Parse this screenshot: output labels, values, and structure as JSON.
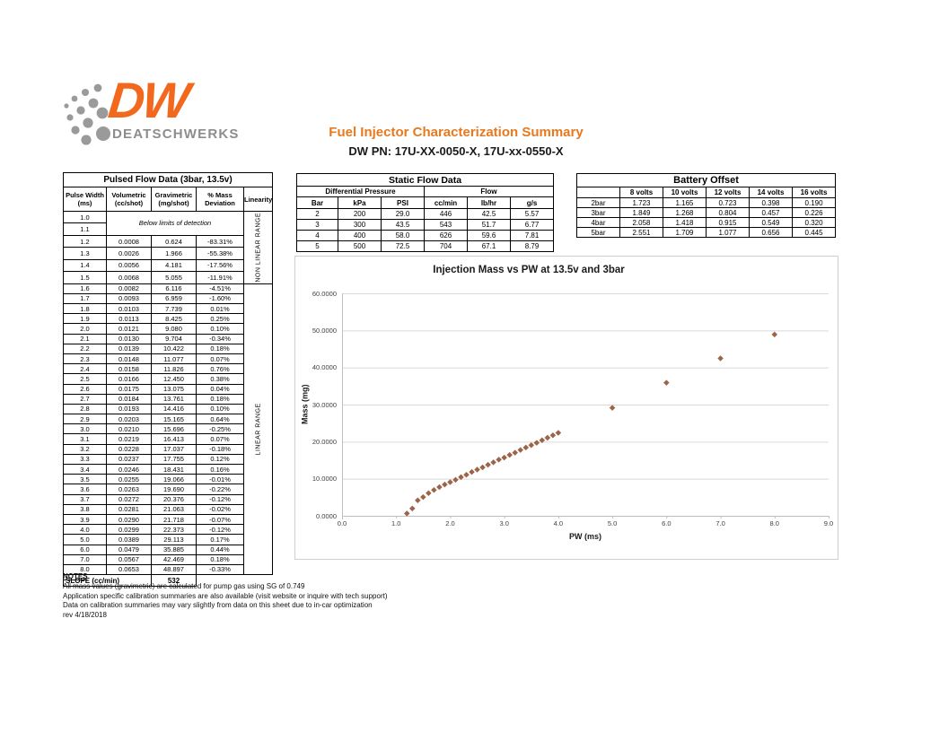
{
  "page": {
    "title": "Fuel Injector Characterization Summary",
    "subtitle": "DW PN: 17U-XX-0050-X, 17U-xx-0550-X"
  },
  "logo": {
    "mark": "DW",
    "name": "DEATSCHWERKS"
  },
  "colors": {
    "accent_orange": "#e8791d",
    "logo_orange": "#f2691e",
    "logo_gray": "#8d8d8d",
    "marker_brown": "#9c6449",
    "gridline_gray": "#d9d9d9",
    "axis_gray": "#bfbfbf"
  },
  "pulsed_table": {
    "title": "Pulsed Flow Data (3bar, 13.5v)",
    "columns": [
      [
        "Pulse Width",
        "(ms)"
      ],
      [
        "Volumetric",
        "(cc/shot)"
      ],
      [
        "Gravimetric",
        "(mg/shot)"
      ],
      [
        "% Mass",
        "Deviation"
      ],
      [
        "Linearity"
      ]
    ],
    "below_rows": [
      "1.0",
      "1.1"
    ],
    "below_limits_label": "Below limits of detection",
    "non_linear_label": "NON LINEAR RANGE",
    "linear_label": "LINEAR RANGE",
    "non_linear_rows": [
      [
        "1.2",
        "0.0008",
        "0.624",
        "-83.31%"
      ],
      [
        "1.3",
        "0.0026",
        "1.966",
        "-55.38%"
      ],
      [
        "1.4",
        "0.0056",
        "4.181",
        "-17.56%"
      ],
      [
        "1.5",
        "0.0068",
        "5.055",
        "-11.91%"
      ]
    ],
    "linear_rows": [
      [
        "1.6",
        "0.0082",
        "6.116",
        "-4.51%"
      ],
      [
        "1.7",
        "0.0093",
        "6.959",
        "-1.60%"
      ],
      [
        "1.8",
        "0.0103",
        "7.739",
        "0.01%"
      ],
      [
        "1.9",
        "0.0113",
        "8.425",
        "0.25%"
      ],
      [
        "2.0",
        "0.0121",
        "9.080",
        "0.10%"
      ],
      [
        "2.1",
        "0.0130",
        "9.704",
        "-0.34%"
      ],
      [
        "2.2",
        "0.0139",
        "10.422",
        "0.18%"
      ],
      [
        "2.3",
        "0.0148",
        "11.077",
        "0.07%"
      ],
      [
        "2.4",
        "0.0158",
        "11.826",
        "0.76%"
      ],
      [
        "2.5",
        "0.0166",
        "12.450",
        "0.38%"
      ],
      [
        "2.6",
        "0.0175",
        "13.075",
        "0.04%"
      ],
      [
        "2.7",
        "0.0184",
        "13.761",
        "0.18%"
      ],
      [
        "2.8",
        "0.0193",
        "14.416",
        "0.10%"
      ],
      [
        "2.9",
        "0.0203",
        "15.165",
        "0.64%"
      ],
      [
        "3.0",
        "0.0210",
        "15.696",
        "-0.25%"
      ],
      [
        "3.1",
        "0.0219",
        "16.413",
        "0.07%"
      ],
      [
        "3.2",
        "0.0228",
        "17.037",
        "-0.18%"
      ],
      [
        "3.3",
        "0.0237",
        "17.755",
        "0.12%"
      ],
      [
        "3.4",
        "0.0246",
        "18.431",
        "0.16%"
      ],
      [
        "3.5",
        "0.0255",
        "19.066",
        "-0.01%"
      ],
      [
        "3.6",
        "0.0263",
        "19.690",
        "-0.22%"
      ],
      [
        "3.7",
        "0.0272",
        "20.376",
        "-0.12%"
      ],
      [
        "3.8",
        "0.0281",
        "21.063",
        "-0.02%"
      ],
      [
        "3.9",
        "0.0290",
        "21.718",
        "-0.07%"
      ],
      [
        "4.0",
        "0.0299",
        "22.373",
        "-0.12%"
      ],
      [
        "5.0",
        "0.0389",
        "29.113",
        "0.17%"
      ],
      [
        "6.0",
        "0.0479",
        "35.885",
        "0.44%"
      ],
      [
        "7.0",
        "0.0567",
        "42.469",
        "0.18%"
      ],
      [
        "8.0",
        "0.0653",
        "48.897",
        "-0.33%"
      ]
    ],
    "slope_label": "SLOPE (cc/min)",
    "slope_value": "532"
  },
  "static_table": {
    "title": "Static Flow Data",
    "group1": "Differential Pressure",
    "group2": "Flow",
    "headers": [
      "Bar",
      "kPa",
      "PSI",
      "cc/min",
      "lb/hr",
      "g/s"
    ],
    "rows": [
      [
        "2",
        "200",
        "29.0",
        "446",
        "42.5",
        "5.57"
      ],
      [
        "3",
        "300",
        "43.5",
        "543",
        "51.7",
        "6.77"
      ],
      [
        "4",
        "400",
        "58.0",
        "626",
        "59.6",
        "7.81"
      ],
      [
        "5",
        "500",
        "72.5",
        "704",
        "67.1",
        "8.79"
      ]
    ]
  },
  "battery_table": {
    "title": "Battery Offset",
    "headers": [
      "",
      "8 volts",
      "10 volts",
      "12 volts",
      "14 volts",
      "16 volts"
    ],
    "rows": [
      [
        "2bar",
        "1.723",
        "1.165",
        "0.723",
        "0.398",
        "0.190"
      ],
      [
        "3bar",
        "1.849",
        "1.268",
        "0.804",
        "0.457",
        "0.226"
      ],
      [
        "4bar",
        "2.058",
        "1.418",
        "0.915",
        "0.549",
        "0.320"
      ],
      [
        "5bar",
        "2.551",
        "1.709",
        "1.077",
        "0.656",
        "0.445"
      ]
    ]
  },
  "chart_data": {
    "type": "scatter",
    "title": "Injection Mass vs PW at 13.5v and 3bar",
    "xlabel": "PW (ms)",
    "ylabel": "Mass (mg)",
    "xlim": [
      0,
      9
    ],
    "ylim": [
      0,
      60
    ],
    "x_tick_labels": [
      "0.0",
      "1.0",
      "2.0",
      "3.0",
      "4.0",
      "5.0",
      "6.0",
      "7.0",
      "8.0",
      "9.0"
    ],
    "y_tick_labels": [
      "0.0000",
      "10.0000",
      "20.0000",
      "30.0000",
      "40.0000",
      "50.0000",
      "60.0000"
    ],
    "grid": "horizontal",
    "legend": "none",
    "marker": {
      "shape": "diamond",
      "color": "#9c6449"
    },
    "points": [
      [
        1.2,
        0.624
      ],
      [
        1.3,
        1.966
      ],
      [
        1.4,
        4.181
      ],
      [
        1.5,
        5.055
      ],
      [
        1.6,
        6.116
      ],
      [
        1.7,
        6.959
      ],
      [
        1.8,
        7.739
      ],
      [
        1.9,
        8.425
      ],
      [
        2.0,
        9.08
      ],
      [
        2.1,
        9.704
      ],
      [
        2.2,
        10.422
      ],
      [
        2.3,
        11.077
      ],
      [
        2.4,
        11.826
      ],
      [
        2.5,
        12.45
      ],
      [
        2.6,
        13.075
      ],
      [
        2.7,
        13.761
      ],
      [
        2.8,
        14.416
      ],
      [
        2.9,
        15.165
      ],
      [
        3.0,
        15.696
      ],
      [
        3.1,
        16.413
      ],
      [
        3.2,
        17.037
      ],
      [
        3.3,
        17.755
      ],
      [
        3.4,
        18.431
      ],
      [
        3.5,
        19.066
      ],
      [
        3.6,
        19.69
      ],
      [
        3.7,
        20.376
      ],
      [
        3.8,
        21.063
      ],
      [
        3.9,
        21.718
      ],
      [
        4.0,
        22.373
      ],
      [
        5.0,
        29.113
      ],
      [
        6.0,
        35.885
      ],
      [
        7.0,
        42.469
      ],
      [
        8.0,
        48.897
      ]
    ]
  },
  "notes": {
    "heading": "NOTES",
    "lines": [
      "All mass values (gravimetric) are calculated for pump gas using SG of 0.749",
      "Application specific calibration summaries are also available (visit website or inquire with tech support)",
      "Data on calibration summaries may vary slightly from data on this sheet due to in-car optimization",
      "rev 4/18/2018"
    ]
  }
}
